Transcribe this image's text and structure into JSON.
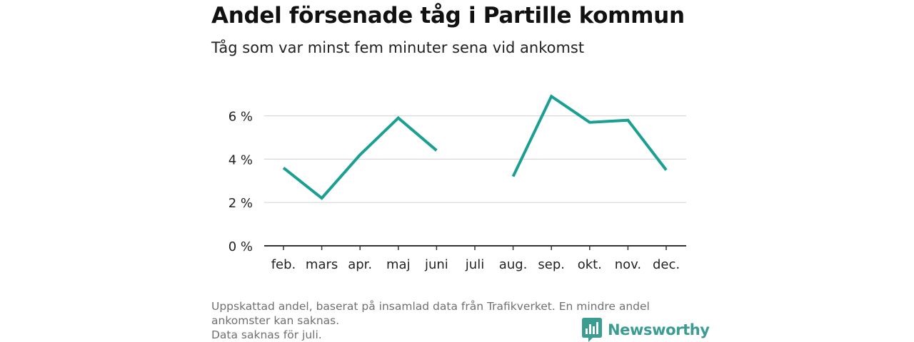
{
  "header": {
    "title": "Andel försenade tåg i Partille kommun",
    "subtitle": "Tåg som var minst fem minuter sena vid ankomst"
  },
  "footer": {
    "line1": "Uppskattad andel, baserat på insamlad data från Trafikverket. En mindre andel",
    "line2": "ankomster kan saknas.",
    "line3": "Data saknas för juli."
  },
  "brand": {
    "name": "Newsworthy",
    "color": "#3b9c91",
    "icon": "bar-chart-logo-icon"
  },
  "colors": {
    "line": "#1a9f93",
    "grid": "#d9d9d9",
    "axis": "#333333"
  },
  "chart_data": {
    "type": "line",
    "categories": [
      "feb.",
      "mars",
      "apr.",
      "maj",
      "juni",
      "juli",
      "aug.",
      "sep.",
      "okt.",
      "nov.",
      "dec."
    ],
    "series": [
      {
        "values": [
          3.6,
          2.2,
          4.2,
          5.9,
          4.4,
          null,
          3.2,
          6.9,
          5.7,
          5.8,
          3.5
        ]
      }
    ],
    "ylim": [
      0,
      7.5
    ],
    "yticks": [
      0,
      2,
      4,
      6
    ],
    "ytick_labels": [
      "0 %",
      "2 %",
      "4 %",
      "6 %"
    ],
    "grid": true,
    "legend": "none"
  }
}
